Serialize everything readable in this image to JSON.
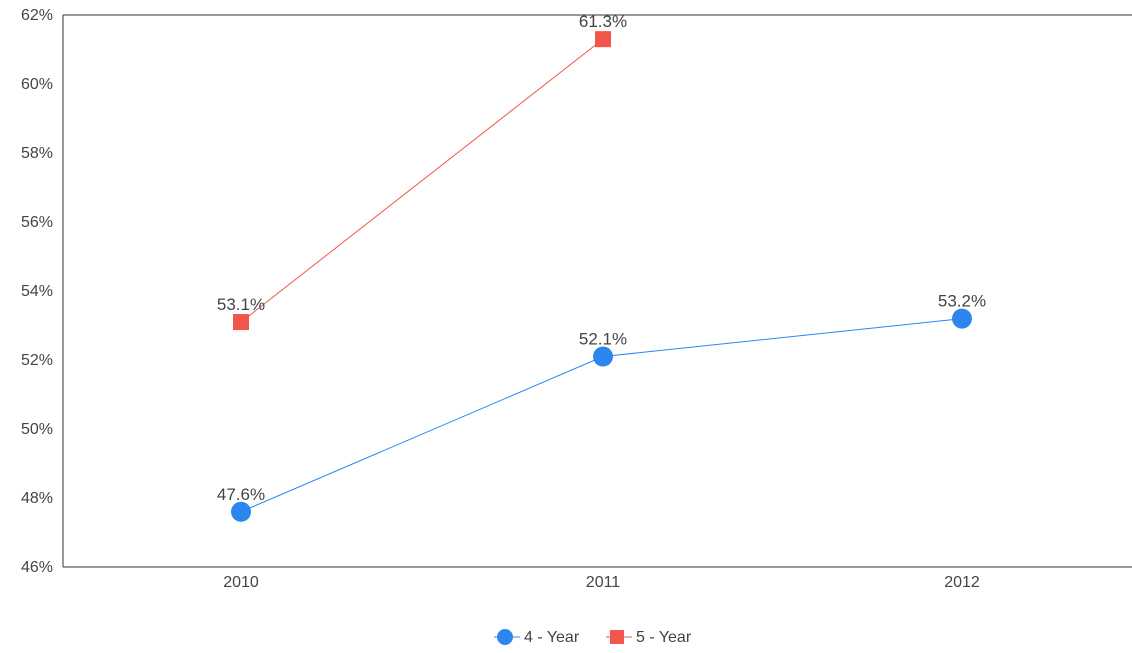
{
  "chart_data": {
    "type": "line",
    "categories": [
      "2010",
      "2011",
      "2012"
    ],
    "series": [
      {
        "name": "4 - Year",
        "values": [
          47.6,
          52.1,
          53.2
        ],
        "labels": [
          "47.6%",
          "52.1%",
          "53.2%"
        ],
        "color": "#2b87ee",
        "marker": "circle"
      },
      {
        "name": "5 - Year",
        "values": [
          53.1,
          61.3,
          null
        ],
        "labels": [
          "53.1%",
          "61.3%",
          null
        ],
        "color": "#f2554a",
        "marker": "square"
      }
    ],
    "ylim": [
      46,
      62
    ],
    "yticks": [
      "46%",
      "48%",
      "50%",
      "52%",
      "54%",
      "56%",
      "58%",
      "60%",
      "62%"
    ],
    "ytick_values": [
      46,
      48,
      50,
      52,
      54,
      56,
      58,
      60,
      62
    ],
    "grid": false,
    "legend_position": "bottom-center",
    "axis_color": "#333333",
    "text_color": "#444444"
  }
}
